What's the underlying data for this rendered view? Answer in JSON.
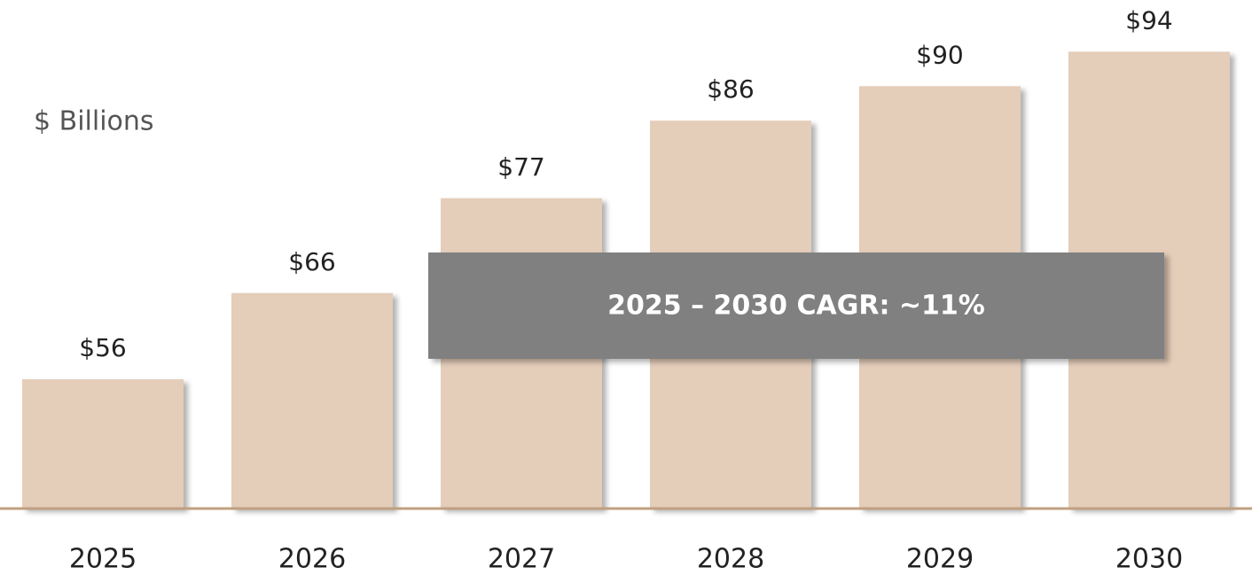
{
  "chart_data": {
    "type": "bar",
    "y_label": "$ Billions",
    "annotation": "2025 – 2030 CAGR: ~11%",
    "categories": [
      "2025",
      "2026",
      "2027",
      "2028",
      "2029",
      "2030"
    ],
    "values": [
      56,
      66,
      77,
      86,
      90,
      94
    ],
    "value_labels": [
      "$56",
      "$66",
      "$77",
      "$86",
      "$90",
      "$94"
    ],
    "color": "#e4cdb9",
    "ylim": [
      41,
      100
    ]
  }
}
